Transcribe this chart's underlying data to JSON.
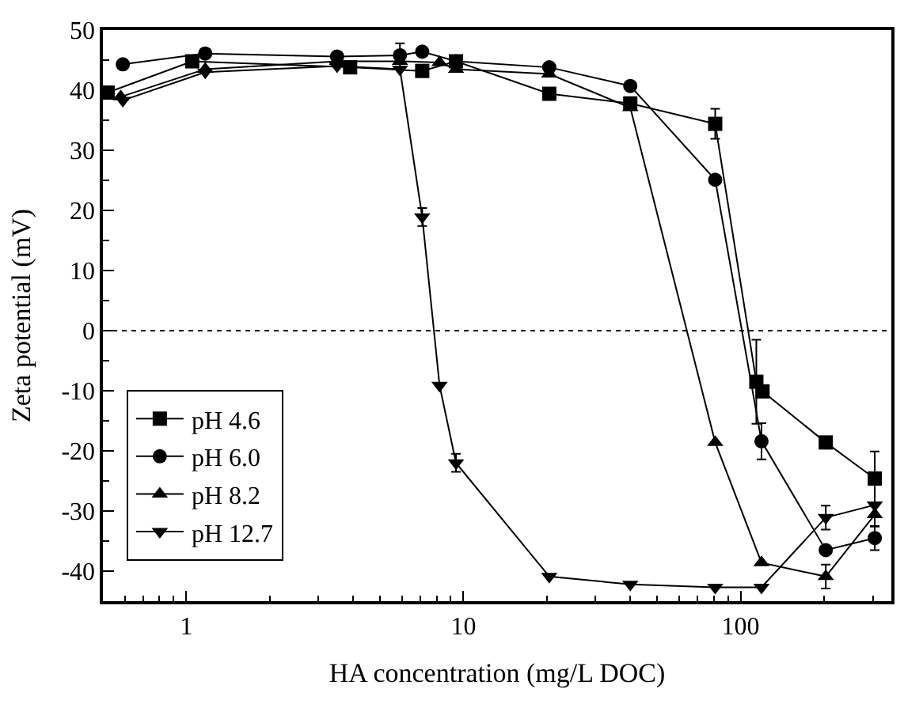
{
  "chart_data": {
    "type": "line",
    "xlabel": "HA concentration (mg/L DOC)",
    "ylabel": "Zeta potential (mV)",
    "log": "x",
    "xlim": [
      0.5,
      350
    ],
    "xticks": [
      1,
      10,
      100
    ],
    "ylim": [
      -45,
      50
    ],
    "yticks": [
      -40,
      -30,
      -20,
      -10,
      0,
      10,
      20,
      30,
      40,
      50
    ],
    "grid": false,
    "legend": "bottom left",
    "line_style": "solid",
    "ref_lines": [
      {
        "axis": "y",
        "value": 0,
        "color": "#000000",
        "line_style": "dotted"
      }
    ],
    "series": [
      {
        "name": "pH 4.6",
        "color": "#000000",
        "marker": "square",
        "x": [
          0.52,
          1.05,
          3.9,
          7.1,
          9.4,
          20.4,
          40,
          81,
          114,
          120,
          203,
          305
        ],
        "values": [
          39.6,
          44.8,
          43.8,
          43.2,
          44.8,
          39.4,
          37.8,
          34.4,
          -8.5,
          -10.1,
          -18.6,
          -24.6
        ],
        "errors": [
          null,
          null,
          null,
          null,
          null,
          null,
          null,
          2.5,
          7,
          null,
          null,
          4.5
        ]
      },
      {
        "name": "pH 6.0",
        "color": "#000000",
        "marker": "circle",
        "x": [
          0.59,
          1.17,
          3.5,
          5.9,
          7.1,
          9.4,
          20.4,
          40,
          81,
          119,
          203,
          305
        ],
        "values": [
          44.3,
          46.1,
          45.6,
          45.8,
          46.4,
          44.8,
          43.8,
          40.7,
          25.1,
          -18.4,
          -36.5,
          -34.5
        ],
        "errors": [
          null,
          null,
          null,
          2,
          null,
          null,
          null,
          null,
          null,
          3,
          null,
          2
        ]
      },
      {
        "name": "pH 8.2",
        "color": "#000000",
        "marker": "triangle",
        "x": [
          0.58,
          1.17,
          3.5,
          5.9,
          8.2,
          9.4,
          20.4,
          40,
          81,
          119,
          203,
          305
        ],
        "values": [
          38.9,
          43.5,
          44.8,
          44.8,
          44.6,
          43.5,
          42.7,
          37.1,
          -18.6,
          -38.6,
          -40.9,
          -30.6
        ],
        "errors": [
          null,
          null,
          null,
          null,
          null,
          null,
          null,
          null,
          null,
          null,
          2,
          2
        ]
      },
      {
        "name": "pH 12.7",
        "color": "#000000",
        "marker": "triangle-down",
        "x": [
          0.59,
          1.17,
          3.5,
          5.9,
          7.1,
          8.2,
          9.4,
          20.4,
          40,
          81,
          119,
          203,
          305
        ],
        "values": [
          38.3,
          43.0,
          44.0,
          43.5,
          18.9,
          -9.1,
          -22.0,
          -40.9,
          -42.2,
          -42.7,
          -42.7,
          -31.1,
          -29.0
        ],
        "errors": [
          null,
          null,
          null,
          null,
          1.5,
          null,
          1.5,
          null,
          null,
          null,
          null,
          2,
          null
        ]
      }
    ]
  }
}
